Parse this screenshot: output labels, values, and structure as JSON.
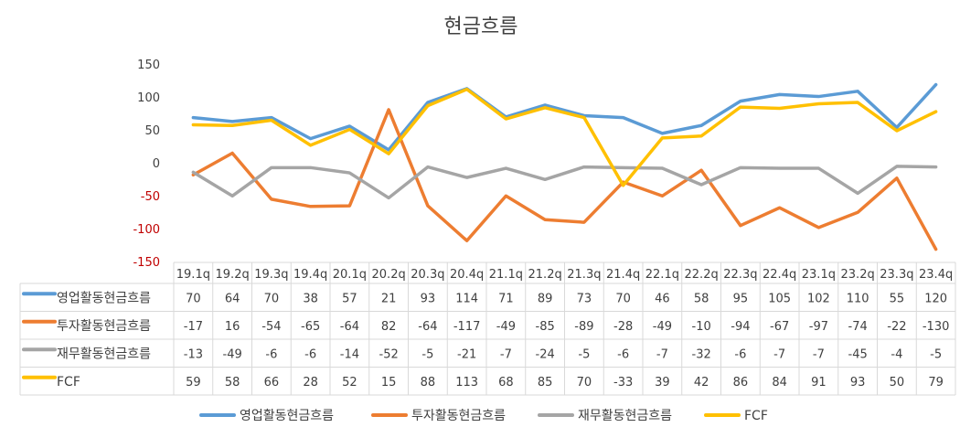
{
  "chart_data": {
    "type": "line",
    "title": "현금흐름",
    "xlabel": "",
    "ylabel": "",
    "ylim": [
      -150,
      150
    ],
    "yticks": [
      150,
      100,
      50,
      0,
      -50,
      -100,
      -150
    ],
    "grid": false,
    "legend": "bottom",
    "data_table": true,
    "categories": [
      "19.1q",
      "19.2q",
      "19.3q",
      "19.4q",
      "20.1q",
      "20.2q",
      "20.3q",
      "20.4q",
      "21.1q",
      "21.2q",
      "21.3q",
      "21.4q",
      "22.1q",
      "22.2q",
      "22.3q",
      "22.4q",
      "23.1q",
      "23.2q",
      "23.3q",
      "23.4q"
    ],
    "series": [
      {
        "name": "영업활동현금흐름",
        "color": "#5B9BD5",
        "values": [
          70,
          64,
          70,
          38,
          57,
          21,
          93,
          114,
          71,
          89,
          73,
          70,
          46,
          58,
          95,
          105,
          102,
          110,
          55,
          120
        ]
      },
      {
        "name": "투자활동현금흐름",
        "color": "#ED7D31",
        "values": [
          -17,
          16,
          -54,
          -65,
          -64,
          82,
          -64,
          -117,
          -49,
          -85,
          -89,
          -28,
          -49,
          -10,
          -94,
          -67,
          -97,
          -74,
          -22,
          -130
        ]
      },
      {
        "name": "재무활동현금흐름",
        "color": "#A5A5A5",
        "values": [
          -13,
          -49,
          -6,
          -6,
          -14,
          -52,
          -5,
          -21,
          -7,
          -24,
          -5,
          -6,
          -7,
          -32,
          -6,
          -7,
          -7,
          -45,
          -4,
          -5
        ]
      },
      {
        "name": "FCF",
        "color": "#FFC000",
        "values": [
          59,
          58,
          66,
          28,
          52,
          15,
          88,
          113,
          68,
          85,
          70,
          -33,
          39,
          42,
          86,
          84,
          91,
          93,
          50,
          79
        ]
      }
    ],
    "colors": {
      "negative_tick": "#C00000",
      "table_border": "#D9D9D9"
    }
  }
}
